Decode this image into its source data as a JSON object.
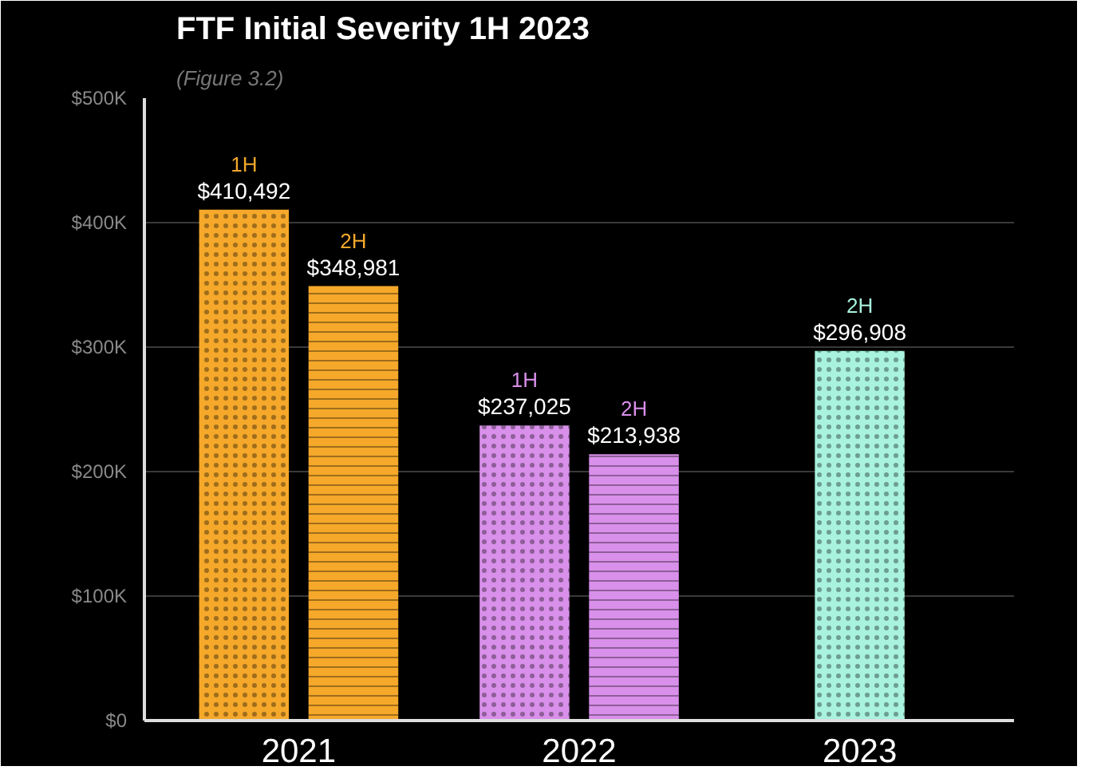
{
  "chart_data": {
    "type": "bar",
    "title": "FTF Initial Severity 1H 2023",
    "subtitle": "(Figure 3.2)",
    "categories": [
      "2021",
      "2022",
      "2023"
    ],
    "series": [
      {
        "name": "1H",
        "colors": [
          "#f5a82a",
          "#d990ea",
          "#a8f2de"
        ],
        "values": [
          410492,
          237025,
          null
        ],
        "value_labels": [
          "$410,492",
          "$237,025",
          null
        ]
      },
      {
        "name": "2H",
        "colors": [
          "#f5a82a",
          "#d990ea",
          "#a8f2de"
        ],
        "values": [
          348981,
          213938,
          296908
        ],
        "value_labels": [
          "$348,981",
          "$213,938",
          "$296,908"
        ]
      }
    ],
    "ylim": [
      0,
      500000
    ],
    "yticks": [
      {
        "value": 0,
        "label": "$0"
      },
      {
        "value": 100000,
        "label": "$100K"
      },
      {
        "value": 200000,
        "label": "$200K"
      },
      {
        "value": 300000,
        "label": "$300K"
      },
      {
        "value": 400000,
        "label": "$400K"
      },
      {
        "value": 500000,
        "label": "$500K"
      }
    ],
    "grid": "y"
  }
}
